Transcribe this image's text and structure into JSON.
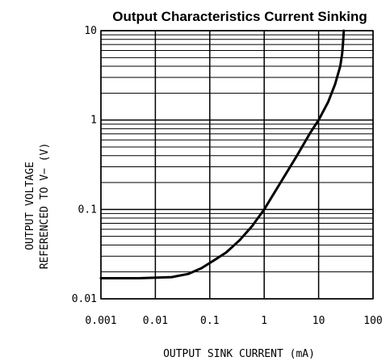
{
  "chart_data": {
    "type": "line",
    "title": "Output Characteristics Current Sinking",
    "xlabel": "OUTPUT SINK CURRENT (mA)",
    "ylabel_line1": "OUTPUT VOLTAGE",
    "ylabel_line2": "REFERENCED TO V− (V)",
    "x_scale": "log",
    "y_scale": "log",
    "xlim": [
      0.001,
      100
    ],
    "ylim": [
      0.01,
      10
    ],
    "x_ticks": [
      0.001,
      0.01,
      0.1,
      1,
      10,
      100
    ],
    "x_tick_labels": [
      "0.001",
      "0.01",
      "0.1",
      "1",
      "10",
      "100"
    ],
    "y_ticks": [
      0.01,
      0.1,
      1,
      10
    ],
    "y_tick_labels": [
      "0.01",
      "0.1",
      "1",
      "10"
    ],
    "grid": true,
    "series": [
      {
        "x": [
          0.001,
          0.005,
          0.02,
          0.04,
          0.07,
          0.12,
          0.2,
          0.35,
          0.6,
          1,
          2,
          4,
          7,
          10,
          15,
          20,
          25,
          27,
          28,
          28.5,
          29
        ],
        "y": [
          0.017,
          0.017,
          0.0175,
          0.019,
          0.022,
          0.027,
          0.033,
          0.045,
          0.065,
          0.1,
          0.2,
          0.4,
          0.72,
          1,
          1.6,
          2.5,
          4,
          5.5,
          7,
          8.5,
          10
        ]
      }
    ]
  }
}
